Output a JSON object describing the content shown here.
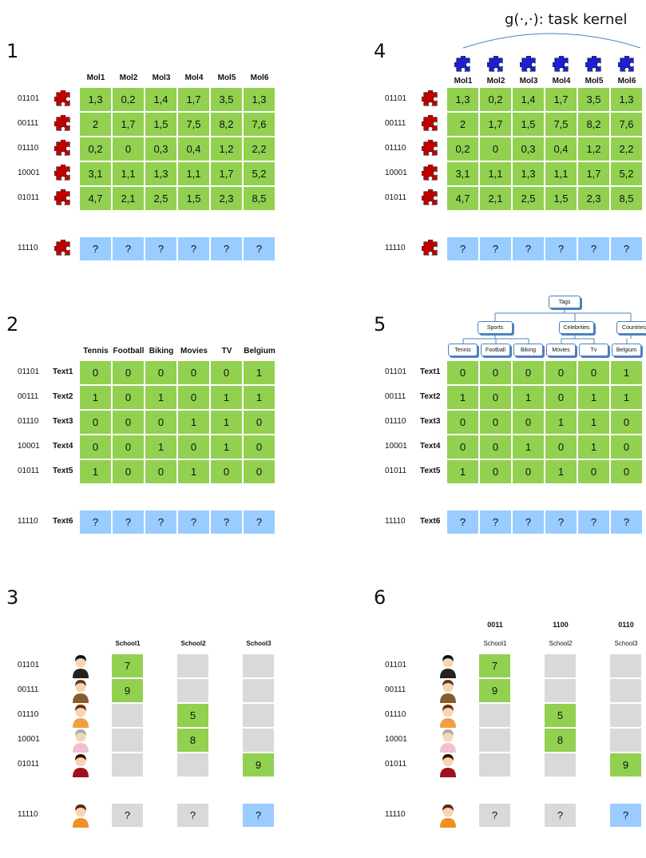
{
  "kernel_label": "g(·,·): task kernel",
  "panels": [
    {
      "number": "1",
      "cols": [
        "Mol1",
        "Mol2",
        "Mol3",
        "Mol4",
        "Mol5",
        "Mol6"
      ],
      "rows": [
        {
          "id": "01101",
          "values": [
            "1,3",
            "0,2",
            "1,4",
            "1,7",
            "3,5",
            "1,3"
          ]
        },
        {
          "id": "00111",
          "values": [
            "2",
            "1,7",
            "1,5",
            "7,5",
            "8,2",
            "7,6"
          ]
        },
        {
          "id": "01110",
          "values": [
            "0,2",
            "0",
            "0,3",
            "0,4",
            "1,2",
            "2,2"
          ]
        },
        {
          "id": "10001",
          "values": [
            "3,1",
            "1,1",
            "1,3",
            "1,1",
            "1,7",
            "5,2"
          ]
        },
        {
          "id": "01011",
          "values": [
            "4,7",
            "2,1",
            "2,5",
            "1,5",
            "2,3",
            "8,5"
          ]
        }
      ],
      "query": {
        "id": "11110",
        "values": [
          "?",
          "?",
          "?",
          "?",
          "?",
          "?"
        ]
      },
      "row_icon": "red-puzzle-piece-icon"
    },
    {
      "number": "2",
      "cols": [
        "Tennis",
        "Football",
        "Biking",
        "Movies",
        "TV",
        "Belgium"
      ],
      "rows": [
        {
          "id": "01101",
          "label": "Text1",
          "values": [
            "0",
            "0",
            "0",
            "0",
            "0",
            "1"
          ]
        },
        {
          "id": "00111",
          "label": "Text2",
          "values": [
            "1",
            "0",
            "1",
            "0",
            "1",
            "1"
          ]
        },
        {
          "id": "01110",
          "label": "Text3",
          "values": [
            "0",
            "0",
            "0",
            "1",
            "1",
            "0"
          ]
        },
        {
          "id": "10001",
          "label": "Text4",
          "values": [
            "0",
            "0",
            "1",
            "0",
            "1",
            "0"
          ]
        },
        {
          "id": "01011",
          "label": "Text5",
          "values": [
            "1",
            "0",
            "0",
            "1",
            "0",
            "0"
          ]
        }
      ],
      "query": {
        "id": "11110",
        "label": "Text6",
        "values": [
          "?",
          "?",
          "?",
          "?",
          "?",
          "?"
        ]
      }
    },
    {
      "number": "3",
      "cols": [
        "School1",
        "School2",
        "School3"
      ],
      "rows": [
        {
          "id": "01101",
          "values": [
            "7",
            "",
            ""
          ],
          "green": [
            0
          ]
        },
        {
          "id": "00111",
          "values": [
            "9",
            "",
            ""
          ],
          "green": [
            0
          ]
        },
        {
          "id": "01110",
          "values": [
            "",
            "5",
            ""
          ],
          "green": [
            1
          ]
        },
        {
          "id": "10001",
          "values": [
            "",
            "8",
            ""
          ],
          "green": [
            1
          ]
        },
        {
          "id": "01011",
          "values": [
            "",
            "",
            "9"
          ],
          "green": [
            2
          ]
        }
      ],
      "query": {
        "id": "11110",
        "values": [
          "?",
          "?",
          "?"
        ],
        "blue": [
          2
        ]
      },
      "row_icon": "person-avatar-icon"
    },
    {
      "number": "4",
      "cols": [
        "Mol1",
        "Mol2",
        "Mol3",
        "Mol4",
        "Mol5",
        "Mol6"
      ],
      "rows": [
        {
          "id": "01101",
          "values": [
            "1,3",
            "0,2",
            "1,4",
            "1,7",
            "3,5",
            "1,3"
          ]
        },
        {
          "id": "00111",
          "values": [
            "2",
            "1,7",
            "1,5",
            "7,5",
            "8,2",
            "7,6"
          ]
        },
        {
          "id": "01110",
          "values": [
            "0,2",
            "0",
            "0,3",
            "0,4",
            "1,2",
            "2,2"
          ]
        },
        {
          "id": "10001",
          "values": [
            "3,1",
            "1,1",
            "1,3",
            "1,1",
            "1,7",
            "5,2"
          ]
        },
        {
          "id": "01011",
          "values": [
            "4,7",
            "2,1",
            "2,5",
            "1,5",
            "2,3",
            "8,5"
          ]
        }
      ],
      "query": {
        "id": "11110",
        "values": [
          "?",
          "?",
          "?",
          "?",
          "?",
          "?"
        ]
      },
      "row_icon": "red-puzzle-piece-icon",
      "col_icon": "blue-puzzle-piece-icon"
    },
    {
      "number": "5",
      "tags": {
        "root": "Tags",
        "groups": [
          "Sports",
          "Celebrities",
          "Countries"
        ],
        "leaves": [
          "Tennis",
          "Football",
          "Biking",
          "Movies",
          "Tv",
          "Belgium"
        ]
      },
      "rows": [
        {
          "id": "01101",
          "label": "Text1",
          "values": [
            "0",
            "0",
            "0",
            "0",
            "0",
            "1"
          ]
        },
        {
          "id": "00111",
          "label": "Text2",
          "values": [
            "1",
            "0",
            "1",
            "0",
            "1",
            "1"
          ]
        },
        {
          "id": "01110",
          "label": "Text3",
          "values": [
            "0",
            "0",
            "0",
            "1",
            "1",
            "0"
          ]
        },
        {
          "id": "10001",
          "label": "Text4",
          "values": [
            "0",
            "0",
            "1",
            "0",
            "1",
            "0"
          ]
        },
        {
          "id": "01011",
          "label": "Text5",
          "values": [
            "1",
            "0",
            "0",
            "1",
            "0",
            "0"
          ]
        }
      ],
      "query": {
        "id": "11110",
        "label": "Text6",
        "values": [
          "?",
          "?",
          "?",
          "?",
          "?",
          "?"
        ]
      }
    },
    {
      "number": "6",
      "codes": [
        "0011",
        "1100",
        "0110"
      ],
      "cols": [
        "School1",
        "School2",
        "School3"
      ],
      "rows": [
        {
          "id": "01101",
          "values": [
            "7",
            "",
            ""
          ],
          "green": [
            0
          ]
        },
        {
          "id": "00111",
          "values": [
            "9",
            "",
            ""
          ],
          "green": [
            0
          ]
        },
        {
          "id": "01110",
          "values": [
            "",
            "5",
            ""
          ],
          "green": [
            1
          ]
        },
        {
          "id": "10001",
          "values": [
            "",
            "8",
            ""
          ],
          "green": [
            1
          ]
        },
        {
          "id": "01011",
          "values": [
            "",
            "",
            "9"
          ],
          "green": [
            2
          ]
        }
      ],
      "query": {
        "id": "11110",
        "values": [
          "?",
          "?",
          "?"
        ],
        "blue": [
          2
        ]
      },
      "row_icon": "person-avatar-icon"
    }
  ],
  "colors": {
    "green": "#92d050",
    "blue": "#99ccff",
    "grey": "#d9d9d9",
    "red": "#c00000",
    "navy": "#1f1fd0"
  }
}
